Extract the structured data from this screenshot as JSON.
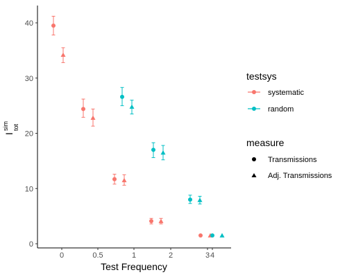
{
  "chart_data": {
    "type": "scatter",
    "xlabel": "Test Frequency",
    "ylabel_main": "I",
    "ylabel_sup": "sim",
    "ylabel_sub": "tot",
    "ylim": [
      0,
      41
    ],
    "yticks": [
      0,
      10,
      20,
      30,
      40
    ],
    "xticks": [
      "0",
      "0.5",
      "1",
      "2",
      "3",
      "4"
    ],
    "colors": {
      "systematic": "#F8766D",
      "random": "#00BFC4"
    },
    "legend": {
      "testsys_title": "testsys",
      "testsys_items": [
        "systematic",
        "random"
      ],
      "measure_title": "measure",
      "measure_items": [
        "Transmissions",
        "Adj. Transmissions"
      ],
      "placement": "right"
    },
    "points": [
      {
        "x": "0",
        "testsys": "systematic",
        "measure": "Transmissions",
        "y": 39.5,
        "ymin": 37.8,
        "ymax": 41.2
      },
      {
        "x": "0",
        "testsys": "systematic",
        "measure": "Adj. Transmissions",
        "y": 34.2,
        "ymin": 32.8,
        "ymax": 35.5
      },
      {
        "x": "0.5",
        "testsys": "systematic",
        "measure": "Transmissions",
        "y": 24.4,
        "ymin": 22.9,
        "ymax": 26.2
      },
      {
        "x": "0.5",
        "testsys": "systematic",
        "measure": "Adj. Transmissions",
        "y": 22.8,
        "ymin": 21.3,
        "ymax": 24.4
      },
      {
        "x": "0.5",
        "testsys": "random",
        "measure": "Transmissions",
        "y": 26.6,
        "ymin": 25.0,
        "ymax": 28.3
      },
      {
        "x": "0.5",
        "testsys": "random",
        "measure": "Adj. Transmissions",
        "y": 24.8,
        "ymin": 23.5,
        "ymax": 26.0
      },
      {
        "x": "1",
        "testsys": "systematic",
        "measure": "Transmissions",
        "y": 11.7,
        "ymin": 10.8,
        "ymax": 12.6
      },
      {
        "x": "1",
        "testsys": "systematic",
        "measure": "Adj. Transmissions",
        "y": 11.5,
        "ymin": 10.6,
        "ymax": 12.5
      },
      {
        "x": "1",
        "testsys": "random",
        "measure": "Transmissions",
        "y": 17.0,
        "ymin": 15.6,
        "ymax": 18.3
      },
      {
        "x": "1",
        "testsys": "random",
        "measure": "Adj. Transmissions",
        "y": 16.5,
        "ymin": 15.2,
        "ymax": 17.8
      },
      {
        "x": "2",
        "testsys": "systematic",
        "measure": "Transmissions",
        "y": 4.1,
        "ymin": 3.6,
        "ymax": 4.6
      },
      {
        "x": "2",
        "testsys": "systematic",
        "measure": "Adj. Transmissions",
        "y": 4.1,
        "ymin": 3.6,
        "ymax": 4.6
      },
      {
        "x": "2",
        "testsys": "random",
        "measure": "Transmissions",
        "y": 8.0,
        "ymin": 7.3,
        "ymax": 8.8
      },
      {
        "x": "2",
        "testsys": "random",
        "measure": "Adj. Transmissions",
        "y": 7.9,
        "ymin": 7.2,
        "ymax": 8.6
      },
      {
        "x": "3",
        "testsys": "systematic",
        "measure": "Transmissions",
        "y": 1.5,
        "ymin": 1.5,
        "ymax": 1.5
      },
      {
        "x": "3",
        "testsys": "systematic",
        "measure": "Adj. Transmissions",
        "y": 1.5,
        "ymin": 1.5,
        "ymax": 1.5
      },
      {
        "x": "4",
        "testsys": "random",
        "measure": "Transmissions",
        "y": 1.5,
        "ymin": 1.5,
        "ymax": 1.5
      },
      {
        "x": "4",
        "testsys": "random",
        "measure": "Adj. Transmissions",
        "y": 1.5,
        "ymin": 1.5,
        "ymax": 1.5
      }
    ]
  }
}
